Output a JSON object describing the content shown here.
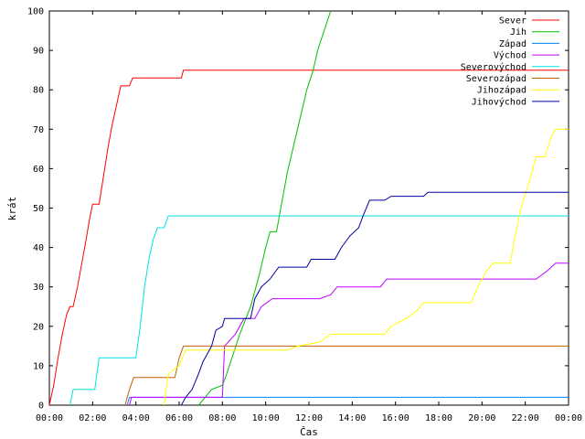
{
  "chart_data": {
    "type": "line",
    "title": "",
    "xlabel": "Čas",
    "ylabel": "krát",
    "xlim": [
      0,
      24
    ],
    "ylim": [
      0,
      100
    ],
    "grid": false,
    "legend_placement": "top-right",
    "x_ticks": [
      {
        "v": 0,
        "label": "00:00"
      },
      {
        "v": 2,
        "label": "02:00"
      },
      {
        "v": 4,
        "label": "04:00"
      },
      {
        "v": 6,
        "label": "06:00"
      },
      {
        "v": 8,
        "label": "08:00"
      },
      {
        "v": 10,
        "label": "10:00"
      },
      {
        "v": 12,
        "label": "12:00"
      },
      {
        "v": 14,
        "label": "14:00"
      },
      {
        "v": 16,
        "label": "16:00"
      },
      {
        "v": 18,
        "label": "18:00"
      },
      {
        "v": 20,
        "label": "20:00"
      },
      {
        "v": 22,
        "label": "22:00"
      },
      {
        "v": 24,
        "label": "00:00"
      }
    ],
    "y_ticks": [
      {
        "v": 0,
        "label": "0"
      },
      {
        "v": 10,
        "label": "10"
      },
      {
        "v": 20,
        "label": "20"
      },
      {
        "v": 30,
        "label": "30"
      },
      {
        "v": 40,
        "label": "40"
      },
      {
        "v": 50,
        "label": "50"
      },
      {
        "v": 60,
        "label": "60"
      },
      {
        "v": 70,
        "label": "70"
      },
      {
        "v": 80,
        "label": "80"
      },
      {
        "v": 90,
        "label": "90"
      },
      {
        "v": 100,
        "label": "100"
      }
    ],
    "series": [
      {
        "name": "Sever",
        "color": "#ff0000",
        "points": [
          [
            0,
            0
          ],
          [
            0.2,
            5
          ],
          [
            0.4,
            12
          ],
          [
            0.6,
            18
          ],
          [
            0.8,
            23
          ],
          [
            0.95,
            25
          ],
          [
            1.1,
            25
          ],
          [
            1.3,
            30
          ],
          [
            1.5,
            36
          ],
          [
            1.7,
            42
          ],
          [
            1.85,
            47
          ],
          [
            2.0,
            51
          ],
          [
            2.3,
            51
          ],
          [
            2.5,
            58
          ],
          [
            2.7,
            65
          ],
          [
            2.9,
            71
          ],
          [
            3.1,
            76
          ],
          [
            3.3,
            81
          ],
          [
            3.7,
            81
          ],
          [
            3.85,
            83
          ],
          [
            6.1,
            83
          ],
          [
            6.2,
            85
          ],
          [
            24,
            85
          ]
        ]
      },
      {
        "name": "Jih",
        "color": "#00c000",
        "points": [
          [
            6.9,
            0
          ],
          [
            7.2,
            2
          ],
          [
            7.5,
            4
          ],
          [
            8.0,
            5
          ],
          [
            8.2,
            8
          ],
          [
            8.5,
            13
          ],
          [
            8.8,
            18
          ],
          [
            9.3,
            25
          ],
          [
            9.7,
            33
          ],
          [
            10.0,
            40
          ],
          [
            10.2,
            44
          ],
          [
            10.5,
            44
          ],
          [
            10.7,
            50
          ],
          [
            11.0,
            59
          ],
          [
            11.3,
            66
          ],
          [
            11.6,
            73
          ],
          [
            11.9,
            80
          ],
          [
            12.2,
            85
          ],
          [
            12.4,
            90
          ],
          [
            12.7,
            95
          ],
          [
            13.0,
            100
          ]
        ]
      },
      {
        "name": "Západ",
        "color": "#0080ff",
        "points": [
          [
            3.6,
            0
          ],
          [
            3.7,
            2
          ],
          [
            24,
            2
          ]
        ]
      },
      {
        "name": "Východ",
        "color": "#c000ff",
        "points": [
          [
            3.7,
            0
          ],
          [
            3.8,
            2
          ],
          [
            8.0,
            2
          ],
          [
            8.1,
            15
          ],
          [
            8.6,
            18
          ],
          [
            9.0,
            22
          ],
          [
            9.5,
            22
          ],
          [
            9.8,
            25
          ],
          [
            10.3,
            27
          ],
          [
            12.5,
            27
          ],
          [
            13.0,
            28
          ],
          [
            13.3,
            30
          ],
          [
            15.3,
            30
          ],
          [
            15.6,
            32
          ],
          [
            22.5,
            32
          ],
          [
            23.0,
            34
          ],
          [
            23.4,
            36
          ],
          [
            24,
            36
          ]
        ]
      },
      {
        "name": "Severovýchod",
        "color": "#00e0e0",
        "points": [
          [
            0.95,
            0
          ],
          [
            1.1,
            4
          ],
          [
            2.1,
            4
          ],
          [
            2.3,
            12
          ],
          [
            4.0,
            12
          ],
          [
            4.2,
            20
          ],
          [
            4.4,
            30
          ],
          [
            4.6,
            37
          ],
          [
            4.8,
            42
          ],
          [
            5.0,
            45
          ],
          [
            5.3,
            45
          ],
          [
            5.5,
            48
          ],
          [
            24,
            48
          ]
        ]
      },
      {
        "name": "Severozápad",
        "color": "#c06000",
        "points": [
          [
            3.5,
            0
          ],
          [
            3.7,
            4
          ],
          [
            3.9,
            7
          ],
          [
            5.8,
            7
          ],
          [
            6.0,
            12
          ],
          [
            6.2,
            15
          ],
          [
            24,
            15
          ]
        ]
      },
      {
        "name": "Jihozápad",
        "color": "#ffff00",
        "points": [
          [
            5.3,
            0
          ],
          [
            5.5,
            8
          ],
          [
            6.0,
            10
          ],
          [
            6.3,
            14
          ],
          [
            11.0,
            14
          ],
          [
            11.5,
            15
          ],
          [
            12.5,
            16
          ],
          [
            13.0,
            18
          ],
          [
            15.5,
            18
          ],
          [
            15.8,
            20
          ],
          [
            16.5,
            22
          ],
          [
            17.0,
            24
          ],
          [
            17.3,
            26
          ],
          [
            19.5,
            26
          ],
          [
            19.8,
            30
          ],
          [
            20.2,
            34
          ],
          [
            20.5,
            36
          ],
          [
            21.3,
            36
          ],
          [
            21.5,
            42
          ],
          [
            21.8,
            50
          ],
          [
            22.2,
            57
          ],
          [
            22.5,
            63
          ],
          [
            22.9,
            63
          ],
          [
            23.2,
            68
          ],
          [
            23.4,
            70
          ],
          [
            24,
            70
          ]
        ]
      },
      {
        "name": "Jihovýchod",
        "color": "#0000a0",
        "points": [
          [
            6.1,
            0
          ],
          [
            6.3,
            2
          ],
          [
            6.6,
            4
          ],
          [
            6.9,
            8
          ],
          [
            7.1,
            11
          ],
          [
            7.5,
            15
          ],
          [
            7.7,
            19
          ],
          [
            8.0,
            20
          ],
          [
            8.1,
            22
          ],
          [
            9.3,
            22
          ],
          [
            9.5,
            27
          ],
          [
            9.8,
            30
          ],
          [
            10.2,
            32
          ],
          [
            10.6,
            35
          ],
          [
            11.9,
            35
          ],
          [
            12.1,
            37
          ],
          [
            13.2,
            37
          ],
          [
            13.5,
            40
          ],
          [
            13.9,
            43
          ],
          [
            14.3,
            45
          ],
          [
            14.5,
            48
          ],
          [
            14.8,
            52
          ],
          [
            15.5,
            52
          ],
          [
            15.8,
            53
          ],
          [
            17.3,
            53
          ],
          [
            17.5,
            54
          ],
          [
            24,
            54
          ]
        ]
      }
    ]
  }
}
